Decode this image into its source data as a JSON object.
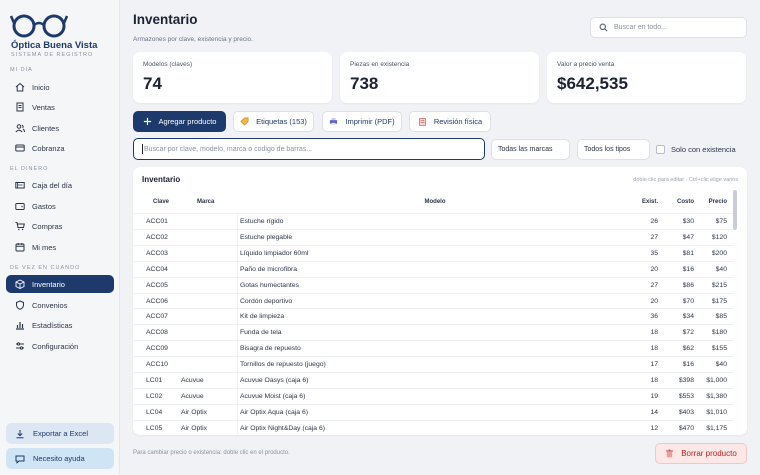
{
  "brand": {
    "name": "Óptica Buena Vista",
    "subtitle": "SISTEMA DE REGISTRO"
  },
  "sidebar": {
    "sections": [
      {
        "title": "MI DÍA",
        "items": [
          {
            "label": "Inicio",
            "icon": "home-icon"
          },
          {
            "label": "Ventas",
            "icon": "receipt-icon"
          },
          {
            "label": "Clientes",
            "icon": "users-icon"
          },
          {
            "label": "Cobranza",
            "icon": "card-icon"
          }
        ]
      },
      {
        "title": "EL DINERO",
        "items": [
          {
            "label": "Caja del día",
            "icon": "cash-icon"
          },
          {
            "label": "Gastos",
            "icon": "wallet-icon"
          },
          {
            "label": "Compras",
            "icon": "cart-icon"
          },
          {
            "label": "Mi mes",
            "icon": "calendar-icon"
          }
        ]
      },
      {
        "title": "DE VEZ EN CUANDO",
        "items": [
          {
            "label": "Inventario",
            "icon": "box-icon",
            "active": true
          },
          {
            "label": "Convenios",
            "icon": "shield-icon"
          },
          {
            "label": "Estadísticas",
            "icon": "chart-icon"
          },
          {
            "label": "Configuración",
            "icon": "sliders-icon"
          }
        ]
      }
    ],
    "export_label": "Exportar a Excel",
    "help_label": "Necesito ayuda"
  },
  "header": {
    "title": "Inventario",
    "subtitle": "Armazones por clave, existencia y precio.",
    "search_placeholder": "Buscar en todo..."
  },
  "stats": [
    {
      "label": "Modelos (claves)",
      "value": "74"
    },
    {
      "label": "Piezas en existencia",
      "value": "738"
    },
    {
      "label": "Valor a precio venta",
      "value": "$642,535"
    }
  ],
  "toolbar": {
    "add": "Agregar producto",
    "labels": "Etiquetas (153)",
    "print": "Imprimir (PDF)",
    "review": "Revisión física"
  },
  "filters": {
    "search_placeholder": "Buscar por clave, modelo, marca o codigo de barras...",
    "brand": "Todas las marcas",
    "type": "Todos los tipos",
    "stock_only": "Solo con existencia"
  },
  "table": {
    "title": "Inventario",
    "hint": "doble clic para editar · Ctrl+clic elige varios",
    "columns": [
      "Clave",
      "Marca",
      "Modelo",
      "Exist.",
      "Costo",
      "Precio"
    ],
    "rows": [
      [
        "ACC01",
        "",
        "Estuche rígido",
        "26",
        "$30",
        "$75"
      ],
      [
        "ACC02",
        "",
        "Estuche plegable",
        "27",
        "$47",
        "$120"
      ],
      [
        "ACC03",
        "",
        "Líquido limpiador 60ml",
        "35",
        "$81",
        "$200"
      ],
      [
        "ACC04",
        "",
        "Paño de microfibra",
        "20",
        "$16",
        "$40"
      ],
      [
        "ACC05",
        "",
        "Gotas humectantes",
        "27",
        "$86",
        "$215"
      ],
      [
        "ACC06",
        "",
        "Cordón deportivo",
        "20",
        "$70",
        "$175"
      ],
      [
        "ACC07",
        "",
        "Kit de limpieza",
        "36",
        "$34",
        "$85"
      ],
      [
        "ACC08",
        "",
        "Funda de tela",
        "18",
        "$72",
        "$180"
      ],
      [
        "ACC09",
        "",
        "Bisagra de repuesto",
        "18",
        "$62",
        "$155"
      ],
      [
        "ACC10",
        "",
        "Tornillos de repuesto (juego)",
        "17",
        "$16",
        "$40"
      ],
      [
        "LC01",
        "Acuvue",
        "Acuvue Oasys (caja 6)",
        "18",
        "$398",
        "$1,000"
      ],
      [
        "LC02",
        "Acuvue",
        "Acuvue Moist (caja 6)",
        "19",
        "$553",
        "$1,380"
      ],
      [
        "LC04",
        "Air Optix",
        "Air Optix Aqua (caja 6)",
        "14",
        "$403",
        "$1,010"
      ],
      [
        "LC05",
        "Air Optix",
        "Air Optix Night&Day (caja 6)",
        "12",
        "$470",
        "$1,175"
      ]
    ]
  },
  "footer": {
    "note": "Para cambiar precio o existencia: doble clic en el producto.",
    "delete": "Borrar producto"
  },
  "colors": {
    "accent": "#1e3a6d",
    "danger": "#b42323"
  }
}
